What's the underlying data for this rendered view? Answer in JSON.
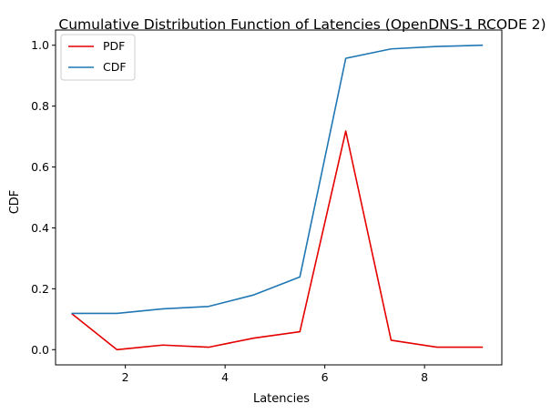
{
  "chart_data": {
    "type": "line",
    "title": "Cumulative Distribution Function of Latencies (OpenDNS-1 RCODE 2)",
    "xlabel": "Latencies",
    "ylabel": "CDF",
    "xlim": [
      0.6,
      9.55
    ],
    "ylim": [
      -0.05,
      1.05
    ],
    "xticks": [
      2,
      4,
      6,
      8
    ],
    "yticks": [
      0.0,
      0.2,
      0.4,
      0.6,
      0.8,
      1.0
    ],
    "grid": false,
    "legend_position": "top-left",
    "x": [
      0.92,
      1.83,
      2.75,
      3.67,
      4.58,
      5.5,
      6.42,
      7.33,
      8.25,
      9.17
    ],
    "series": [
      {
        "name": "PDF",
        "color": "#e50000",
        "values": [
          0.119,
          0.0,
          0.015,
          0.008,
          0.038,
          0.059,
          0.718,
          0.031,
          0.008,
          0.008
        ]
      },
      {
        "name": "CDF",
        "color": "#1f77b4",
        "values": [
          0.119,
          0.119,
          0.134,
          0.142,
          0.18,
          0.239,
          0.957,
          0.988,
          0.996,
          1.0
        ]
      }
    ]
  }
}
